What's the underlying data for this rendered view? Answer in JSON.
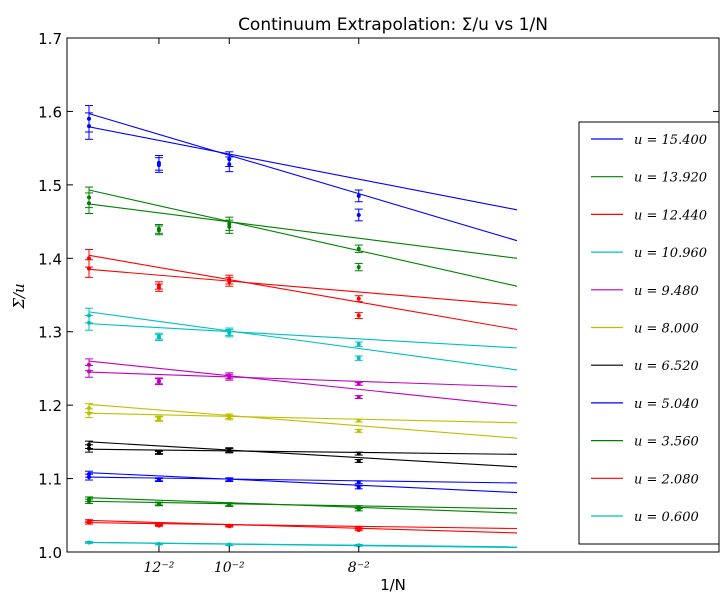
{
  "chart_data": {
    "type": "scatter",
    "title": "Continuum Extrapolation: Σ/u vs 1/N",
    "xlabel": "1/N",
    "ylabel": "Σ/u",
    "ylim": [
      1.0,
      1.7
    ],
    "yticks": [
      "1.0",
      "1.1",
      "1.2",
      "1.3",
      "1.4",
      "1.5",
      "1.6",
      "1.7"
    ],
    "x_tick_labels": [
      "12⁻²",
      "10⁻²",
      "8⁻²"
    ],
    "x": [
      0.00390625,
      0.00694444,
      0.01,
      0.015625
    ],
    "xlim": [
      0.0,
      0.0225
    ],
    "legend_position": "right",
    "grid": false,
    "series": [
      {
        "name": "u = 15.400",
        "color": "#0000ff",
        "values": [
          1.59,
          1.527,
          1.535,
          1.485
        ],
        "values_alt": [
          1.58,
          1.53,
          1.528,
          1.459
        ],
        "errors": [
          0.018,
          0.01,
          0.01,
          0.008
        ],
        "fits": [
          [
            1.579,
            1.466
          ],
          [
            1.597,
            1.424
          ]
        ]
      },
      {
        "name": "u = 13.920",
        "color": "#008000",
        "values": [
          1.483,
          1.44,
          1.447,
          1.413
        ],
        "values_alt": [
          1.475,
          1.438,
          1.443,
          1.388
        ],
        "errors": [
          0.014,
          0.006,
          0.009,
          0.005
        ],
        "fits": [
          [
            1.474,
            1.4
          ],
          [
            1.493,
            1.362
          ]
        ]
      },
      {
        "name": "u = 12.440",
        "color": "#ff0000",
        "values": [
          1.4,
          1.363,
          1.371,
          1.345
        ],
        "values_alt": [
          1.386,
          1.36,
          1.368,
          1.322
        ],
        "errors": [
          0.012,
          0.005,
          0.006,
          0.004
        ],
        "fits": [
          [
            1.385,
            1.336
          ],
          [
            1.404,
            1.303
          ]
        ]
      },
      {
        "name": "u = 10.960",
        "color": "#00bfbf",
        "values": [
          1.322,
          1.294,
          1.3,
          1.283
        ],
        "values_alt": [
          1.312,
          1.292,
          1.298,
          1.264
        ],
        "errors": [
          0.01,
          0.004,
          0.005,
          0.003
        ],
        "fits": [
          [
            1.311,
            1.278
          ],
          [
            1.327,
            1.248
          ]
        ]
      },
      {
        "name": "u = 9.480",
        "color": "#bf00bf",
        "values": [
          1.255,
          1.233,
          1.24,
          1.229
        ],
        "values_alt": [
          1.246,
          1.232,
          1.238,
          1.211
        ],
        "errors": [
          0.008,
          0.004,
          0.004,
          0.002
        ],
        "fits": [
          [
            1.245,
            1.225
          ],
          [
            1.26,
            1.199
          ]
        ]
      },
      {
        "name": "u = 8.000",
        "color": "#bfbf00",
        "values": [
          1.196,
          1.182,
          1.185,
          1.179
        ],
        "values_alt": [
          1.189,
          1.181,
          1.183,
          1.165
        ],
        "errors": [
          0.006,
          0.003,
          0.003,
          0.002
        ],
        "fits": [
          [
            1.189,
            1.176
          ],
          [
            1.201,
            1.155
          ]
        ]
      },
      {
        "name": "u = 6.520",
        "color": "#000000",
        "values": [
          1.146,
          1.136,
          1.139,
          1.134
        ],
        "values_alt": [
          1.141,
          1.135,
          1.138,
          1.124
        ],
        "errors": [
          0.005,
          0.002,
          0.003,
          0.002
        ],
        "fits": [
          [
            1.14,
            1.133
          ],
          [
            1.15,
            1.116
          ]
        ]
      },
      {
        "name": "u = 5.040",
        "color": "#0000ff",
        "values": [
          1.106,
          1.099,
          1.099,
          1.095
        ],
        "values_alt": [
          1.102,
          1.098,
          1.098,
          1.088
        ],
        "errors": [
          0.004,
          0.002,
          0.002,
          0.002
        ],
        "fits": [
          [
            1.102,
            1.094
          ],
          [
            1.108,
            1.081
          ]
        ]
      },
      {
        "name": "u = 3.560",
        "color": "#008000",
        "values": [
          1.072,
          1.066,
          1.065,
          1.061
        ],
        "values_alt": [
          1.069,
          1.065,
          1.064,
          1.058
        ],
        "errors": [
          0.003,
          0.002,
          0.002,
          0.002
        ],
        "fits": [
          [
            1.069,
            1.059
          ],
          [
            1.074,
            1.053
          ]
        ]
      },
      {
        "name": "u = 2.080",
        "color": "#ff0000",
        "values": [
          1.042,
          1.037,
          1.036,
          1.033
        ],
        "values_alt": [
          1.04,
          1.036,
          1.035,
          1.03
        ],
        "errors": [
          0.002,
          0.001,
          0.001,
          0.001
        ],
        "fits": [
          [
            1.04,
            1.032
          ],
          [
            1.043,
            1.026
          ]
        ]
      },
      {
        "name": "u = 0.600",
        "color": "#00bfbf",
        "values": [
          1.013,
          1.011,
          1.01,
          1.009
        ],
        "values_alt": [
          1.013,
          1.011,
          1.01,
          1.009
        ],
        "errors": [
          0.001,
          0.001,
          0.001,
          0.001
        ],
        "fits": [
          [
            1.013,
            1.007
          ],
          [
            1.013,
            1.006
          ]
        ]
      }
    ]
  }
}
